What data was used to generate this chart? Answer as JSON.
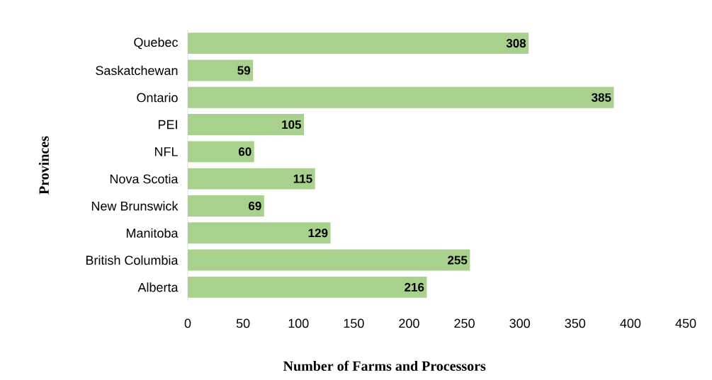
{
  "chart_data": {
    "type": "bar",
    "orientation": "horizontal",
    "xlabel": "Number of Farms and Processors",
    "ylabel": "Provinces",
    "categories": [
      "Quebec",
      "Saskatchewan",
      "Ontario",
      "PEI",
      "NFL",
      "Nova Scotia",
      "New Brunswick",
      "Manitoba",
      "British Columbia",
      "Alberta"
    ],
    "values": [
      308,
      59,
      385,
      105,
      60,
      115,
      69,
      129,
      255,
      216
    ],
    "color": "#a9d18e",
    "xlim": [
      0,
      450
    ],
    "xticks": [
      0,
      50,
      100,
      150,
      200,
      250,
      300,
      350,
      400,
      450
    ],
    "data_labels": true
  }
}
